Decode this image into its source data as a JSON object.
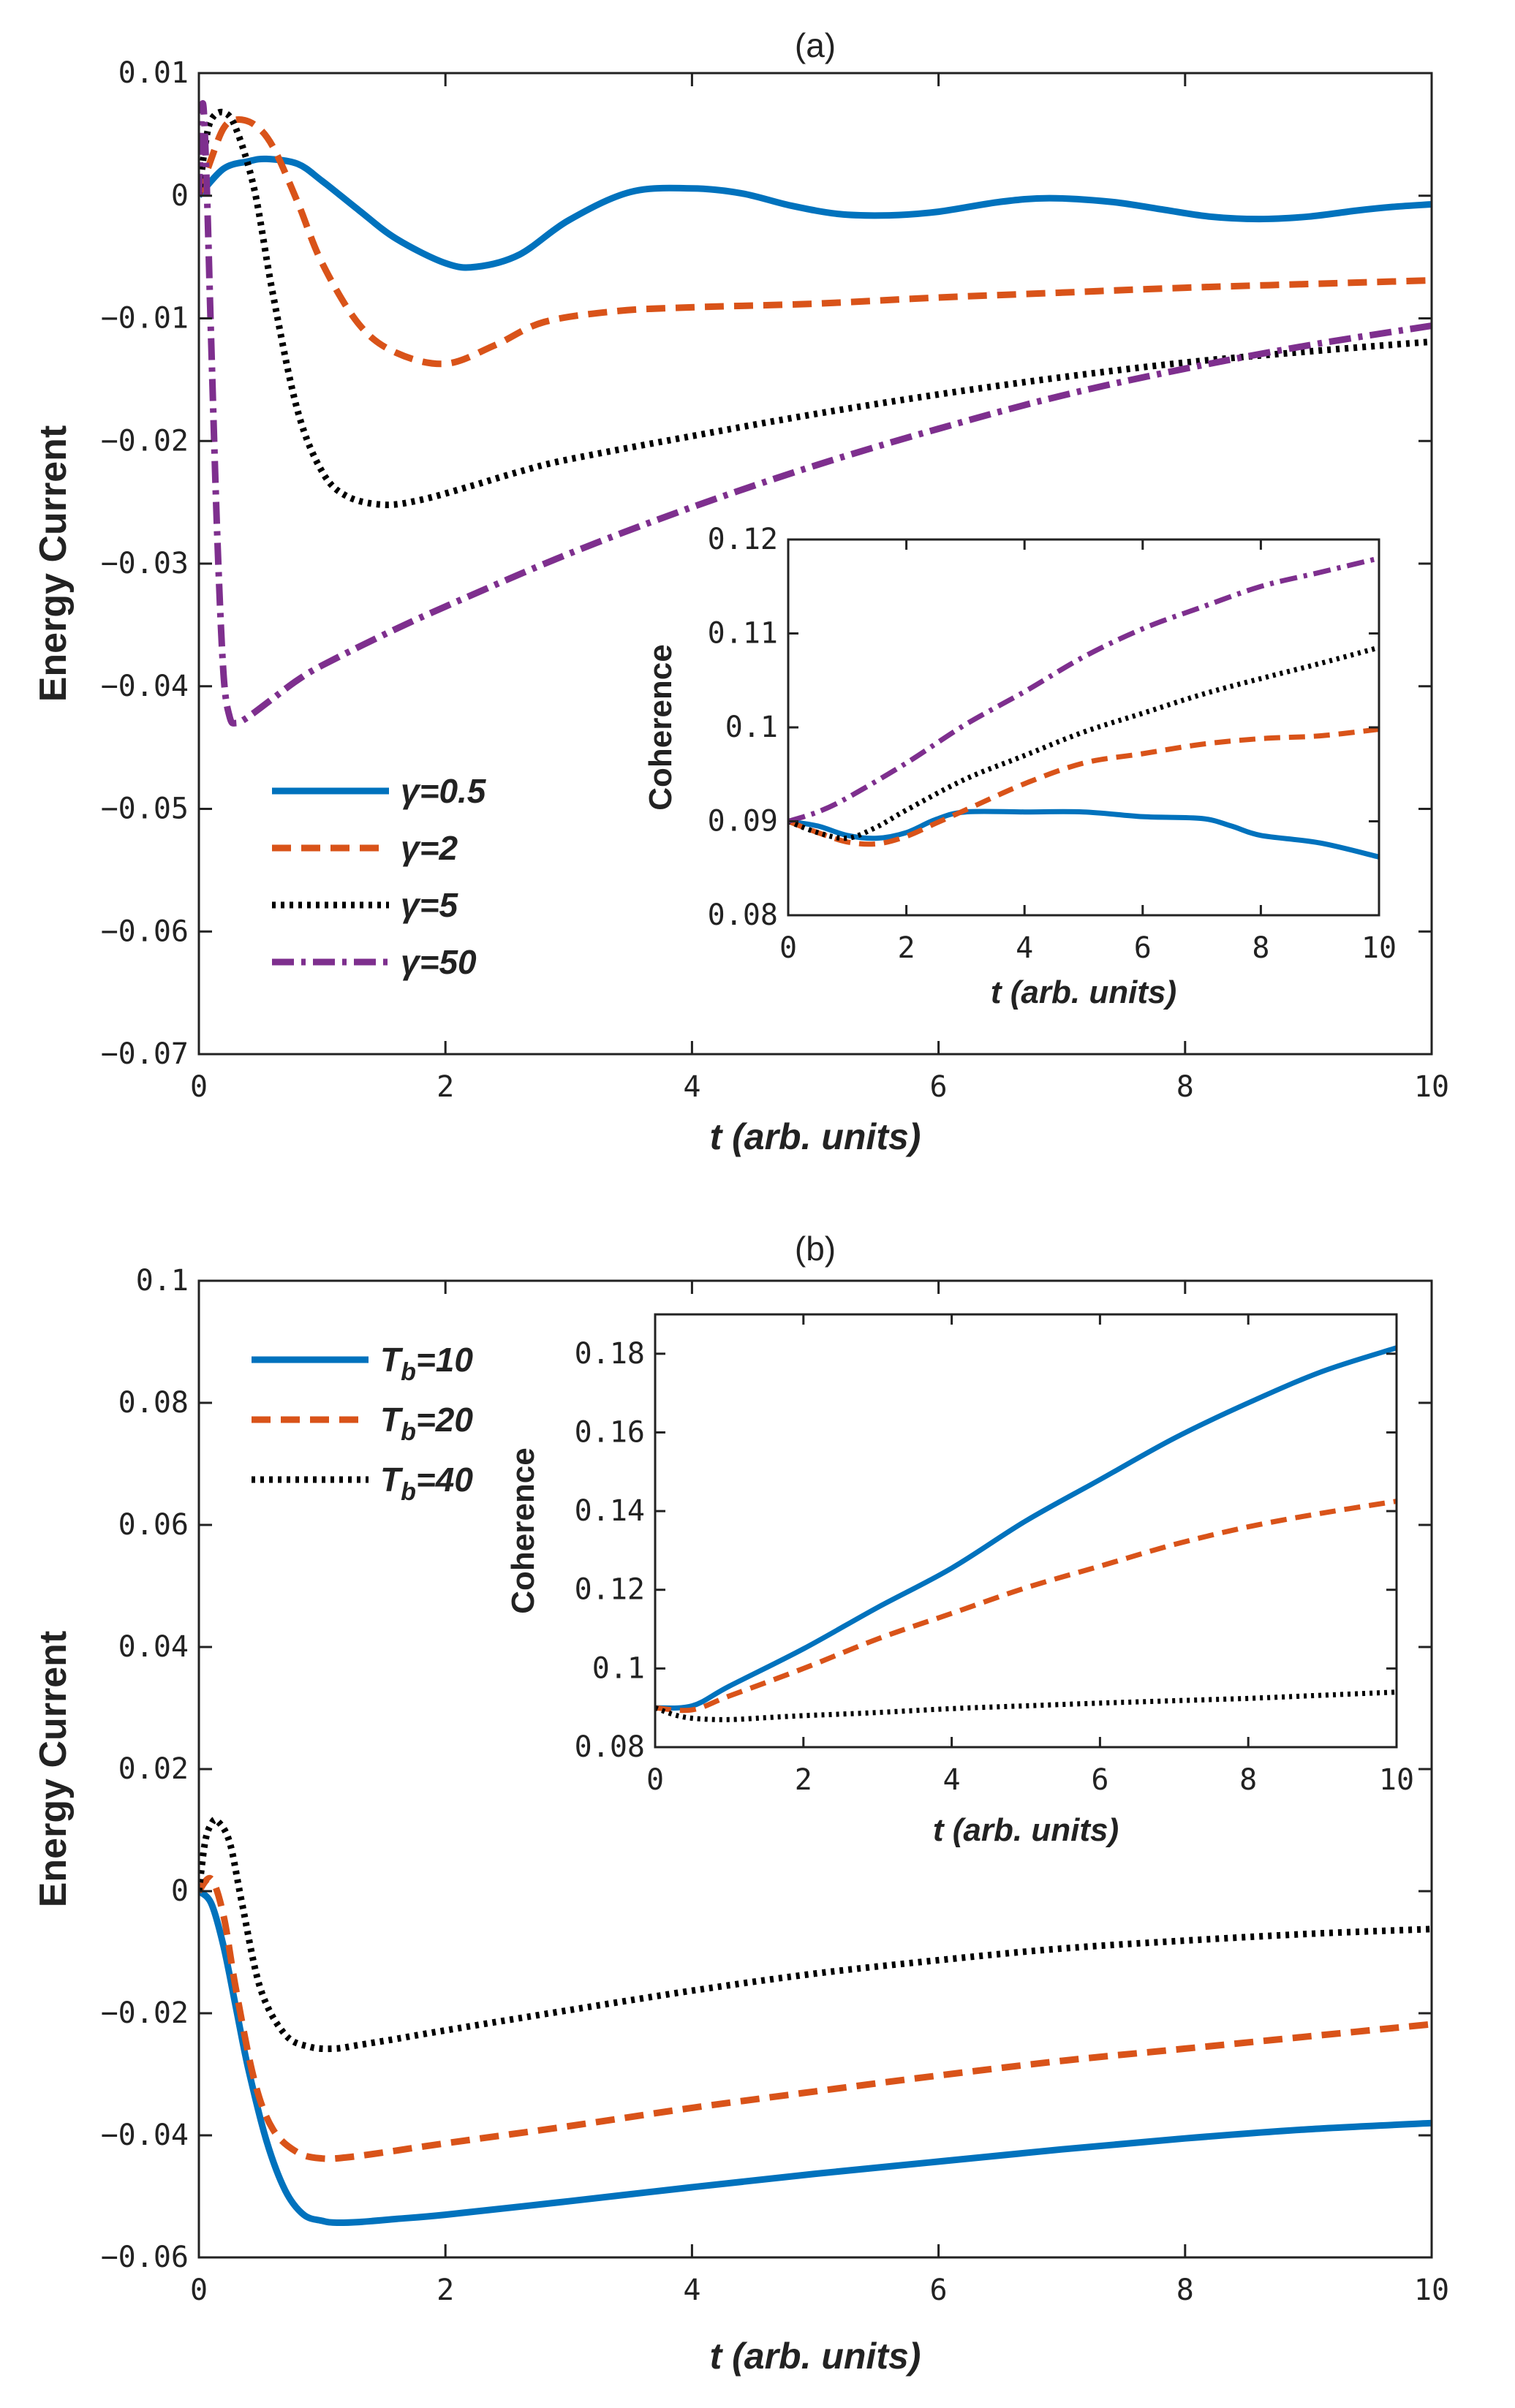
{
  "colors": {
    "blue": "#0072BD",
    "orange": "#D95319",
    "black": "#000000",
    "purple": "#7E2F8E",
    "axis": "#222222"
  },
  "chart_data": [
    {
      "id": "a-main",
      "type": "line",
      "title": "(a)",
      "xlabel": "t (arb. units)",
      "ylabel": "Energy Current",
      "xlim": [
        0,
        10
      ],
      "ylim": [
        -0.07,
        0.01
      ],
      "xticks": [
        0,
        2,
        4,
        6,
        8,
        10
      ],
      "xtick_labels": [
        "0",
        "2",
        "4",
        "6",
        "8",
        "10"
      ],
      "yticks": [
        -0.07,
        -0.06,
        -0.05,
        -0.04,
        -0.03,
        -0.02,
        -0.01,
        0,
        0.01
      ],
      "ytick_labels": [
        "−0.07",
        "−0.06",
        "−0.05",
        "−0.04",
        "−0.03",
        "−0.02",
        "−0.01",
        "0",
        "0.01"
      ],
      "legend_position": "lower-left",
      "series": [
        {
          "name": "γ=0.5",
          "style": "solid",
          "color": "#0072BD",
          "x": [
            0,
            0.2,
            0.4,
            0.55,
            0.8,
            1.0,
            1.3,
            1.6,
            2.0,
            2.25,
            2.6,
            3.0,
            3.5,
            4.0,
            4.4,
            4.8,
            5.2,
            5.6,
            6.0,
            6.5,
            6.9,
            7.4,
            7.8,
            8.2,
            8.6,
            9.0,
            9.4,
            9.7,
            10.0
          ],
          "y": [
            0,
            0.0022,
            0.0028,
            0.003,
            0.0026,
            0.0012,
            -0.0012,
            -0.0035,
            -0.0055,
            -0.0058,
            -0.0048,
            -0.002,
            0.0003,
            0.0006,
            0.0002,
            -0.0008,
            -0.0015,
            -0.0016,
            -0.0013,
            -0.0005,
            -0.0002,
            -0.0005,
            -0.0011,
            -0.0017,
            -0.0019,
            -0.0017,
            -0.0012,
            -0.0009,
            -0.0007
          ]
        },
        {
          "name": "γ=2",
          "style": "dashed",
          "color": "#D95319",
          "x": [
            0,
            0.1,
            0.2,
            0.3,
            0.45,
            0.6,
            0.8,
            1.0,
            1.3,
            1.6,
            2.0,
            2.4,
            2.8,
            3.4,
            4.0,
            5.0,
            6.0,
            7.0,
            8.0,
            9.0,
            10.0
          ],
          "y": [
            0,
            0.003,
            0.0055,
            0.0062,
            0.0058,
            0.004,
            -0.0005,
            -0.0055,
            -0.0105,
            -0.0128,
            -0.0137,
            -0.0122,
            -0.0103,
            -0.0094,
            -0.0091,
            -0.0088,
            -0.0083,
            -0.0079,
            -0.0075,
            -0.0072,
            -0.0069
          ]
        },
        {
          "name": "γ=5",
          "style": "dotted",
          "color": "#000000",
          "x": [
            0,
            0.05,
            0.1,
            0.2,
            0.3,
            0.45,
            0.6,
            0.8,
            1.0,
            1.2,
            1.5,
            1.8,
            2.2,
            2.6,
            3.0,
            4.0,
            5.0,
            6.0,
            7.0,
            8.0,
            9.0,
            10.0
          ],
          "y": [
            0,
            0.004,
            0.0062,
            0.0068,
            0.0055,
            0.0005,
            -0.008,
            -0.0175,
            -0.0225,
            -0.0245,
            -0.0252,
            -0.0248,
            -0.0237,
            -0.0225,
            -0.0215,
            -0.0196,
            -0.0178,
            -0.0162,
            -0.0148,
            -0.0136,
            -0.0127,
            -0.0119
          ]
        },
        {
          "name": "γ=50",
          "style": "dashdot",
          "color": "#7E2F8E",
          "x": [
            0,
            0.03,
            0.06,
            0.1,
            0.15,
            0.2,
            0.25,
            0.3,
            0.4,
            0.6,
            0.8,
            1.0,
            1.5,
            2.0,
            3.0,
            4.0,
            5.0,
            6.0,
            7.0,
            8.0,
            9.0,
            10.0
          ],
          "y": [
            0,
            0.0075,
            0.002,
            -0.012,
            -0.028,
            -0.039,
            -0.0425,
            -0.043,
            -0.0425,
            -0.041,
            -0.0395,
            -0.0383,
            -0.0358,
            -0.0335,
            -0.0292,
            -0.0254,
            -0.022,
            -0.019,
            -0.0163,
            -0.0141,
            -0.0122,
            -0.0106
          ]
        }
      ]
    },
    {
      "id": "a-inset",
      "type": "line",
      "title": "",
      "xlabel": "t (arb. units)",
      "ylabel": "Coherence",
      "xlim": [
        0,
        10
      ],
      "ylim": [
        0.08,
        0.12
      ],
      "xticks": [
        0,
        2,
        4,
        6,
        8,
        10
      ],
      "xtick_labels": [
        "0",
        "2",
        "4",
        "6",
        "8",
        "10"
      ],
      "yticks": [
        0.08,
        0.09,
        0.1,
        0.11,
        0.12
      ],
      "ytick_labels": [
        "0.08",
        "0.09",
        "0.1",
        "0.11",
        "0.12"
      ],
      "series": [
        {
          "name": "γ=0.5",
          "style": "solid",
          "color": "#0072BD",
          "x": [
            0,
            0.5,
            1.0,
            1.5,
            2.0,
            2.5,
            3.0,
            4.0,
            5.0,
            6.0,
            7.0,
            7.5,
            8.0,
            9.0,
            10.0
          ],
          "y": [
            0.09,
            0.0895,
            0.0885,
            0.0882,
            0.0888,
            0.0902,
            0.091,
            0.091,
            0.091,
            0.0905,
            0.0903,
            0.0895,
            0.0885,
            0.0877,
            0.0862
          ]
        },
        {
          "name": "γ=2",
          "style": "dashed",
          "color": "#D95319",
          "x": [
            0,
            0.5,
            1.0,
            1.5,
            2.0,
            2.5,
            3.0,
            4.0,
            5.0,
            6.0,
            7.0,
            8.0,
            9.0,
            10.0
          ],
          "y": [
            0.09,
            0.0888,
            0.0878,
            0.0876,
            0.0884,
            0.0898,
            0.0912,
            0.094,
            0.0962,
            0.0972,
            0.0982,
            0.0988,
            0.0991,
            0.0998
          ]
        },
        {
          "name": "γ=5",
          "style": "dotted",
          "color": "#000000",
          "x": [
            0,
            0.5,
            1.0,
            1.5,
            2.0,
            3.0,
            4.0,
            5.0,
            6.0,
            7.0,
            8.0,
            9.0,
            10.0
          ],
          "y": [
            0.09,
            0.0888,
            0.0882,
            0.0894,
            0.0912,
            0.0945,
            0.097,
            0.0995,
            0.1015,
            0.1035,
            0.1052,
            0.1068,
            0.1085
          ]
        },
        {
          "name": "γ=50",
          "style": "dashdot",
          "color": "#7E2F8E",
          "x": [
            0,
            0.5,
            1.0,
            2.0,
            3.0,
            4.0,
            5.0,
            6.0,
            7.0,
            8.0,
            9.0,
            10.0
          ],
          "y": [
            0.09,
            0.091,
            0.0925,
            0.0962,
            0.1003,
            0.1038,
            0.1075,
            0.1105,
            0.1128,
            0.115,
            0.1165,
            0.118
          ]
        }
      ]
    },
    {
      "id": "b-main",
      "type": "line",
      "title": "(b)",
      "xlabel": "t (arb. units)",
      "ylabel": "Energy Current",
      "xlim": [
        0,
        10
      ],
      "ylim": [
        -0.06,
        0.1
      ],
      "xticks": [
        0,
        2,
        4,
        6,
        8,
        10
      ],
      "xtick_labels": [
        "0",
        "2",
        "4",
        "6",
        "8",
        "10"
      ],
      "yticks": [
        -0.06,
        -0.04,
        -0.02,
        0,
        0.02,
        0.04,
        0.06,
        0.08,
        0.1
      ],
      "ytick_labels": [
        "−0.06",
        "−0.04",
        "−0.02",
        "0",
        "0.02",
        "0.04",
        "0.06",
        "0.08",
        "0.1"
      ],
      "legend_position": "upper-left",
      "series": [
        {
          "name": "Tb=10",
          "legend_main": "T",
          "legend_sub": "b",
          "legend_val": "=10",
          "style": "solid",
          "color": "#0072BD",
          "x": [
            0,
            0.1,
            0.2,
            0.3,
            0.4,
            0.55,
            0.7,
            0.85,
            1.0,
            1.1,
            1.3,
            1.6,
            2.0,
            3.0,
            4.0,
            5.0,
            6.0,
            7.0,
            8.0,
            9.0,
            10.0
          ],
          "y": [
            0,
            -0.002,
            -0.009,
            -0.019,
            -0.029,
            -0.041,
            -0.049,
            -0.053,
            -0.054,
            -0.0543,
            -0.0542,
            -0.0537,
            -0.053,
            -0.0508,
            -0.0485,
            -0.0463,
            -0.0443,
            -0.0423,
            -0.0405,
            -0.039,
            -0.038
          ]
        },
        {
          "name": "Tb=20",
          "legend_main": "T",
          "legend_sub": "b",
          "legend_val": "=20",
          "style": "dashed",
          "color": "#D95319",
          "x": [
            0,
            0.1,
            0.2,
            0.3,
            0.45,
            0.6,
            0.8,
            1.0,
            1.2,
            1.5,
            2.0,
            3.0,
            4.0,
            5.0,
            6.0,
            7.0,
            8.0,
            9.0,
            10.0
          ],
          "y": [
            0,
            0.002,
            -0.004,
            -0.016,
            -0.031,
            -0.039,
            -0.0428,
            -0.0438,
            -0.0436,
            -0.0428,
            -0.0413,
            -0.0385,
            -0.0355,
            -0.0328,
            -0.0302,
            -0.0278,
            -0.0258,
            -0.0238,
            -0.0218
          ]
        },
        {
          "name": "Tb=40",
          "legend_main": "T",
          "legend_sub": "b",
          "legend_val": "=40",
          "style": "dotted",
          "color": "#000000",
          "x": [
            0,
            0.05,
            0.1,
            0.15,
            0.25,
            0.35,
            0.5,
            0.7,
            0.9,
            1.1,
            1.3,
            1.6,
            2.0,
            3.0,
            4.0,
            5.0,
            6.0,
            7.0,
            8.0,
            9.0,
            10.0
          ],
          "y": [
            0,
            0.008,
            0.011,
            0.0115,
            0.008,
            -0.002,
            -0.016,
            -0.0235,
            -0.0255,
            -0.0258,
            -0.0252,
            -0.0242,
            -0.0228,
            -0.0195,
            -0.0163,
            -0.0135,
            -0.0113,
            -0.0094,
            -0.0081,
            -0.007,
            -0.0062
          ]
        }
      ]
    },
    {
      "id": "b-inset",
      "type": "line",
      "title": "",
      "xlabel": "t (arb. units)",
      "ylabel": "Coherence",
      "xlim": [
        0,
        10
      ],
      "ylim": [
        0.08,
        0.19
      ],
      "xticks": [
        0,
        2,
        4,
        6,
        8,
        10
      ],
      "xtick_labels": [
        "0",
        "2",
        "4",
        "6",
        "8",
        "10"
      ],
      "yticks": [
        0.08,
        0.1,
        0.12,
        0.14,
        0.16,
        0.18
      ],
      "ytick_labels": [
        "0.08",
        "0.1",
        "0.12",
        "0.14",
        "0.16",
        "0.18"
      ],
      "series": [
        {
          "name": "Tb=10",
          "style": "solid",
          "color": "#0072BD",
          "x": [
            0,
            0.5,
            1.0,
            2.0,
            3.0,
            4.0,
            5.0,
            6.0,
            7.0,
            8.0,
            9.0,
            10.0
          ],
          "y": [
            0.09,
            0.0905,
            0.0955,
            0.105,
            0.1155,
            0.1255,
            0.1375,
            0.148,
            0.1585,
            0.1675,
            0.1755,
            0.1815
          ]
        },
        {
          "name": "Tb=20",
          "style": "dashed",
          "color": "#D95319",
          "x": [
            0,
            0.5,
            1.0,
            2.0,
            3.0,
            4.0,
            5.0,
            6.0,
            7.0,
            8.0,
            9.0,
            10.0
          ],
          "y": [
            0.09,
            0.0895,
            0.093,
            0.1,
            0.1075,
            0.114,
            0.1205,
            0.126,
            0.1315,
            0.136,
            0.1395,
            0.1425
          ]
        },
        {
          "name": "Tb=40",
          "style": "dotted",
          "color": "#000000",
          "x": [
            0,
            0.3,
            0.6,
            1.0,
            1.5,
            2.0,
            3.0,
            4.0,
            5.0,
            6.0,
            7.0,
            8.0,
            9.0,
            10.0
          ],
          "y": [
            0.09,
            0.088,
            0.0872,
            0.087,
            0.0875,
            0.088,
            0.0888,
            0.0898,
            0.0905,
            0.0912,
            0.0918,
            0.0924,
            0.0932,
            0.094
          ]
        }
      ]
    }
  ]
}
